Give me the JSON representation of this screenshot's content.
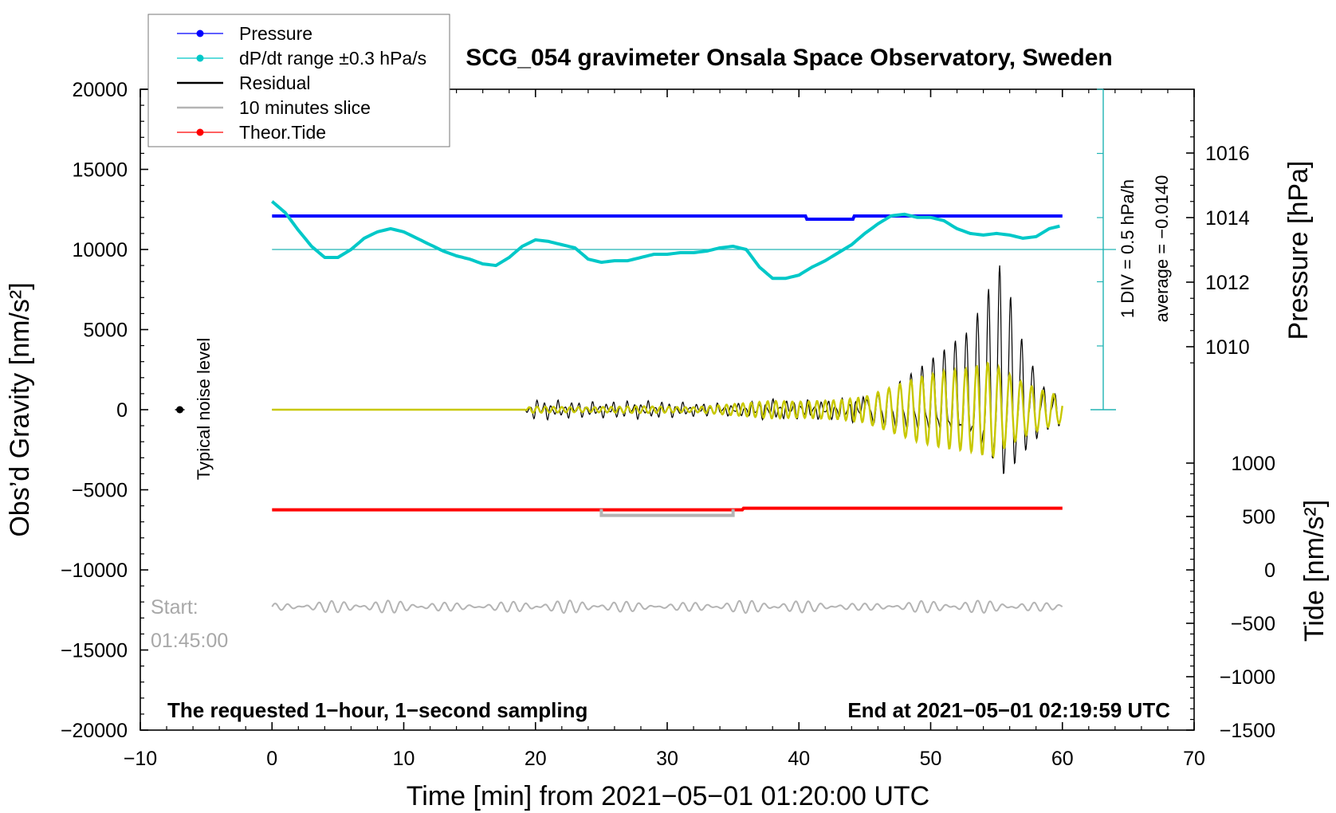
{
  "chart_data": {
    "type": "line",
    "title": "SCG_054 gravimeter Onsala Space Observatory, Sweden",
    "xlabel": "Time [min] from 2021−05−01 01:20:00 UTC",
    "ylabel_left": "Obs’d Gravity [nm/s²]",
    "ylabel_right_top": "Pressure [hPa]",
    "ylabel_right_bottom": "Tide [nm/s²]",
    "xlim": [
      -10,
      70
    ],
    "ylim_left": [
      -20000,
      20000
    ],
    "x_ticks": [
      -10,
      0,
      10,
      20,
      30,
      40,
      50,
      60,
      70
    ],
    "x_tick_labels": [
      "−10",
      "0",
      "10",
      "20",
      "30",
      "40",
      "50",
      "60",
      "70"
    ],
    "y_ticks_left": [
      20000,
      15000,
      10000,
      5000,
      0,
      -5000,
      -10000,
      -15000,
      -20000
    ],
    "y_tick_labels_left": [
      "20000",
      "15000",
      "10000",
      "5000",
      "0",
      "−5000",
      "−10000",
      "−15000",
      "−20000"
    ],
    "pressure_axis": {
      "range_hPa": [
        1008,
        1018
      ],
      "ticks": [
        1016,
        1014,
        1012,
        1010
      ],
      "tick_labels": [
        "1016",
        "1014",
        "1012",
        "1010"
      ]
    },
    "tide_axis": {
      "range_nm_s2": [
        -1500,
        1000
      ],
      "ticks": [
        1000,
        500,
        0,
        -500,
        -1000,
        -1500
      ],
      "tick_labels": [
        "1000",
        "500",
        "0",
        "−500",
        "−1000",
        "−1500"
      ]
    },
    "legend": [
      {
        "label": "Pressure",
        "color": "#0000ff",
        "marker": "dot"
      },
      {
        "label": "dP/dt range ±0.3 hPa/s",
        "color": "#00c8c8",
        "marker": "dot"
      },
      {
        "label": "Residual",
        "color": "#000000",
        "marker": "line"
      },
      {
        "label": "10 minutes slice",
        "color": "#b4b4b4",
        "marker": "line"
      },
      {
        "label": "Theor.Tide",
        "color": "#ff0000",
        "marker": "dot"
      }
    ],
    "series": [
      {
        "name": "Pressure",
        "color": "#0000ff",
        "unit": "hPa",
        "x": [
          0,
          40.5,
          40.6,
          44.1,
          44.2,
          60
        ],
        "y": [
          1014.05,
          1014.05,
          1013.95,
          1013.95,
          1014.05,
          1014.05
        ]
      },
      {
        "name": "dP/dt range",
        "color": "#00c8c8",
        "unit": "nm/s2 (plot scale)",
        "x": [
          0,
          1,
          2,
          3,
          4,
          5,
          6,
          7,
          8,
          9,
          10,
          11,
          12,
          13,
          14,
          15,
          16,
          17,
          18,
          19,
          20,
          21,
          22,
          23,
          24,
          25,
          26,
          27,
          28,
          29,
          30,
          31,
          32,
          33,
          34,
          35,
          36,
          37,
          38,
          39,
          40,
          41,
          42,
          43,
          44,
          45,
          46,
          47,
          48,
          49,
          50,
          51,
          52,
          53,
          54,
          55,
          56,
          57,
          58,
          59,
          60
        ],
        "y": [
          13000,
          12300,
          11200,
          10200,
          9500,
          9500,
          10000,
          10700,
          11100,
          11300,
          11100,
          10700,
          10300,
          9900,
          9600,
          9400,
          9100,
          9000,
          9500,
          10200,
          10600,
          10500,
          10300,
          10100,
          9400,
          9200,
          9300,
          9300,
          9500,
          9700,
          9700,
          9800,
          9800,
          9900,
          10100,
          10200,
          10000,
          8900,
          8200,
          8200,
          8400,
          8900,
          9300,
          9800,
          10300,
          11000,
          11600,
          12100,
          12200,
          12000,
          12000,
          11800,
          11300,
          11000,
          10900,
          11000,
          10900,
          10700,
          10800,
          11300,
          11500
        ]
      },
      {
        "name": "Residual",
        "color": "#000000",
        "unit": "nm/s2",
        "envelope_x": [
          0,
          19.2,
          19.6,
          24,
          28,
          32,
          35,
          38,
          40,
          43,
          45,
          47,
          49,
          51,
          53,
          54.6,
          55.4,
          57,
          58.5,
          60
        ],
        "envelope_amp": [
          0,
          0,
          700,
          500,
          600,
          450,
          400,
          700,
          600,
          700,
          900,
          1800,
          2800,
          3800,
          5000,
          8200,
          10000,
          5000,
          2000,
          1200
        ]
      },
      {
        "name": "Filtered",
        "color": "#c8c800",
        "unit": "nm/s2",
        "envelope_x": [
          0,
          19.2,
          19.6,
          24,
          28,
          32,
          35,
          38,
          40,
          43,
          45,
          47,
          49,
          51,
          53,
          54.6,
          55.4,
          57,
          58.5,
          60
        ],
        "envelope_amp": [
          0,
          0,
          200,
          150,
          220,
          150,
          350,
          550,
          500,
          600,
          800,
          1400,
          2000,
          2400,
          2600,
          3000,
          2500,
          1700,
          1200,
          800
        ]
      },
      {
        "name": "10 minutes slice",
        "color": "#b4b4b4",
        "unit": "nm/s2",
        "baseline": -12300,
        "amplitude": 400
      },
      {
        "name": "Theor.Tide",
        "color": "#ff0000",
        "unit": "nm/s2 (plot scale)",
        "x": [
          0,
          35.7,
          35.8,
          60
        ],
        "y": [
          -6250,
          -6250,
          -6150,
          -6150
        ]
      }
    ],
    "slice_bracket": {
      "x": [
        25,
        35
      ],
      "y": -6600
    },
    "noise_marker": {
      "x": -7,
      "y": 0
    },
    "annotations": {
      "noise_label": "Typical noise level",
      "pressure_scale": "1 DIV = 0.5 hPa/h",
      "average": "average = −0.0140",
      "start_label": "Start:",
      "start_time": "01:45:00",
      "left_note": "The requested 1−hour, 1−second sampling",
      "right_note": "End at 2021−05−01 02:19:59 UTC"
    },
    "grid": false
  }
}
